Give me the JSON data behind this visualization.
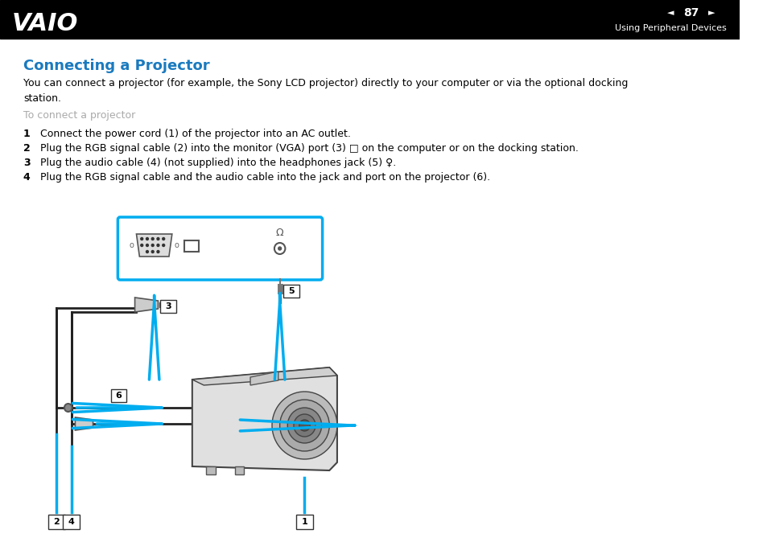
{
  "bg_color": "#ffffff",
  "header_bg": "#000000",
  "header_text_color": "#ffffff",
  "header_page_num": "87",
  "header_section": "Using Peripheral Devices",
  "title": "Connecting a Projector",
  "title_color": "#1a7abf",
  "title_fontsize": 13,
  "body_text1": "You can connect a projector (for example, the Sony LCD projector) directly to your computer or via the optional docking\nstation.",
  "subheading": "To connect a projector",
  "subheading_color": "#aaaaaa",
  "steps": [
    {
      "num": "1",
      "text": "Connect the power cord (1) of the projector into an AC outlet."
    },
    {
      "num": "2",
      "text": "Plug the RGB signal cable (2) into the monitor (VGA) port (3) □ on the computer or on the docking station."
    },
    {
      "num": "3",
      "text": "Plug the audio cable (4) (not supplied) into the headphones jack (5) ♀."
    },
    {
      "num": "4",
      "text": "Plug the RGB signal cable and the audio cable into the jack and port on the projector (6)."
    }
  ],
  "cyan_color": "#00adef",
  "body_fontsize": 9,
  "step_fontsize": 9
}
